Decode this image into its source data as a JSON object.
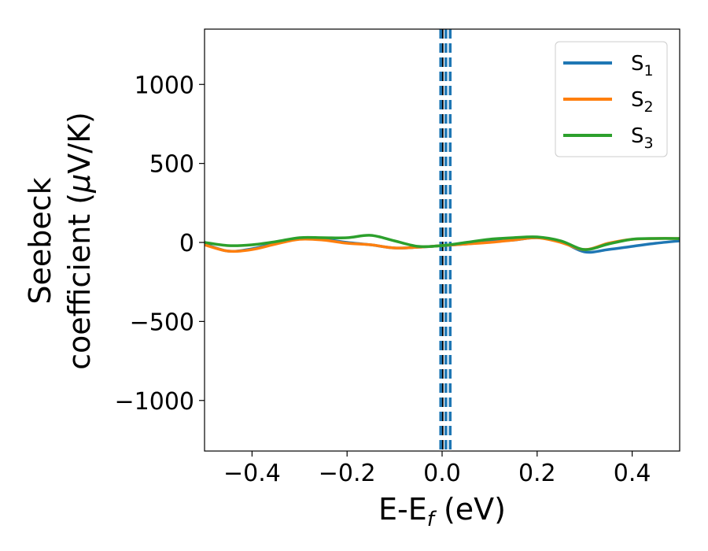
{
  "chart_data": {
    "type": "line",
    "xlabel": "E-E",
    "xlabel_sub": "f",
    "xlabel_unit": " (eV)",
    "ylabel_line1": "Seebeck",
    "ylabel_line2": "coefficient  (",
    "ylabel_mu": "μ",
    "ylabel_unit": "V/K)",
    "xlim": [
      -0.5,
      0.5
    ],
    "ylim": [
      -1320,
      1350
    ],
    "x_ticks": [
      -0.4,
      -0.2,
      0.0,
      0.2,
      0.4
    ],
    "x_tick_labels": [
      "−0.4",
      "−0.2",
      "0.0",
      "0.2",
      "0.4"
    ],
    "y_ticks": [
      -1000,
      -500,
      0,
      500,
      1000
    ],
    "y_tick_labels": [
      "−1000",
      "−500",
      "0",
      "500",
      "1000"
    ],
    "legend_position": "top-right",
    "vlines": [
      {
        "x": 0.0,
        "color": "#000000",
        "style": "dashed"
      },
      {
        "x": -0.003,
        "color": "#1f77b4",
        "style": "dashed"
      },
      {
        "x": 0.008,
        "color": "#1f77b4",
        "style": "dashed"
      },
      {
        "x": 0.017,
        "color": "#1f77b4",
        "style": "dashed"
      }
    ],
    "series": [
      {
        "name": "S",
        "sub": "1",
        "color": "#1f77b4",
        "x": [
          -0.5,
          -0.45,
          -0.4,
          -0.35,
          -0.3,
          -0.25,
          -0.2,
          -0.15,
          -0.1,
          -0.05,
          0.0,
          0.05,
          0.1,
          0.15,
          0.2,
          0.25,
          0.3,
          0.35,
          0.4,
          0.45,
          0.5
        ],
        "values": [
          -10,
          -55,
          -40,
          -5,
          25,
          20,
          0,
          -15,
          -35,
          -30,
          -20,
          -10,
          5,
          15,
          30,
          5,
          -60,
          -45,
          -25,
          -5,
          10
        ]
      },
      {
        "name": "S",
        "sub": "2",
        "color": "#ff7f0e",
        "x": [
          -0.5,
          -0.45,
          -0.4,
          -0.35,
          -0.3,
          -0.25,
          -0.2,
          -0.15,
          -0.1,
          -0.05,
          0.0,
          0.05,
          0.1,
          0.15,
          0.2,
          0.25,
          0.3,
          0.35,
          0.4,
          0.45,
          0.5
        ],
        "values": [
          -15,
          -55,
          -45,
          -10,
          20,
          15,
          -5,
          -15,
          -35,
          -30,
          -20,
          -10,
          0,
          15,
          30,
          0,
          -45,
          -5,
          20,
          25,
          25
        ]
      },
      {
        "name": "S",
        "sub": "3",
        "color": "#2ca02c",
        "x": [
          -0.5,
          -0.45,
          -0.4,
          -0.35,
          -0.3,
          -0.25,
          -0.2,
          -0.15,
          -0.1,
          -0.05,
          0.0,
          0.05,
          0.1,
          0.15,
          0.2,
          0.25,
          0.3,
          0.35,
          0.4,
          0.45,
          0.5
        ],
        "values": [
          0,
          -20,
          -15,
          5,
          30,
          30,
          30,
          45,
          10,
          -25,
          -20,
          0,
          20,
          30,
          35,
          10,
          -45,
          -10,
          20,
          25,
          25
        ]
      }
    ]
  }
}
